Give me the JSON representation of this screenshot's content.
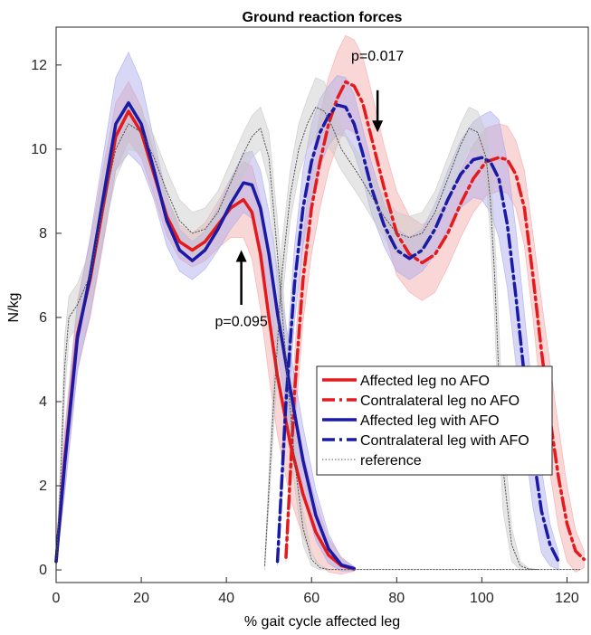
{
  "chart_data": {
    "type": "line",
    "title": "Ground reaction forces",
    "xlabel": "% gait cycle affected leg",
    "ylabel": "N/kg",
    "xlim": [
      0,
      125
    ],
    "ylim": [
      -0.3,
      12.9
    ],
    "xticks": [
      0,
      20,
      40,
      60,
      80,
      100,
      120
    ],
    "yticks": [
      0,
      2,
      4,
      6,
      8,
      10,
      12
    ],
    "grid": false,
    "legend_position": "lower-right",
    "annotations": [
      {
        "text": "p=0.017",
        "x": 75.5,
        "y": 12.1,
        "arrow_from": [
          75.5,
          11.4
        ],
        "arrow_to": [
          75.5,
          10.4
        ]
      },
      {
        "text": "p=0.095",
        "x": 43.5,
        "y": 5.8,
        "arrow_from": [
          43.5,
          6.3
        ],
        "arrow_to": [
          43.5,
          7.6
        ]
      }
    ],
    "series": [
      {
        "name": "Affected leg no AFO",
        "color": "#e41a1c",
        "dash": "solid",
        "band_color": "#f4a7a7",
        "x": [
          0,
          2,
          5,
          8,
          11,
          14,
          17,
          20,
          23,
          26,
          29,
          32,
          35,
          38,
          41,
          44,
          46,
          48,
          50,
          52,
          55,
          58,
          61,
          64,
          67,
          70
        ],
        "y": [
          0.2,
          2.6,
          5.6,
          6.9,
          8.6,
          10.3,
          10.9,
          10.4,
          9.4,
          8.4,
          7.8,
          7.6,
          7.8,
          8.2,
          8.6,
          8.8,
          8.5,
          7.5,
          6.0,
          4.6,
          3.0,
          1.8,
          0.9,
          0.35,
          0.1,
          0.02
        ],
        "band": [
          0.1,
          0.7,
          0.8,
          0.9,
          0.9,
          0.8,
          0.7,
          0.6,
          0.5,
          0.45,
          0.4,
          0.4,
          0.45,
          0.55,
          0.7,
          0.9,
          1.1,
          1.3,
          1.4,
          1.4,
          1.3,
          1.0,
          0.7,
          0.4,
          0.2,
          0.05
        ]
      },
      {
        "name": "Contralateral leg no AFO",
        "color": "#e41a1c",
        "dash": "dashdot",
        "band_color": "#f4a7a7",
        "x": [
          54,
          56,
          58,
          60,
          62,
          64,
          66,
          68,
          70,
          72,
          74,
          77,
          80,
          83,
          86,
          89,
          92,
          95,
          98,
          101,
          104,
          106,
          108,
          110,
          112,
          114,
          116,
          118,
          120,
          122,
          124
        ],
        "y": [
          0.3,
          4.2,
          6.9,
          8.6,
          9.7,
          10.6,
          11.2,
          11.6,
          11.5,
          11.1,
          10.3,
          9.1,
          8.0,
          7.5,
          7.3,
          7.5,
          8.0,
          8.7,
          9.3,
          9.7,
          9.8,
          9.75,
          9.4,
          8.6,
          7.0,
          5.2,
          3.6,
          2.2,
          1.1,
          0.45,
          0.25
        ],
        "band": [
          0.1,
          0.9,
          1.0,
          1.1,
          1.1,
          1.1,
          1.1,
          1.1,
          1.1,
          1.1,
          1.1,
          1.0,
          1.0,
          0.9,
          0.9,
          0.9,
          0.8,
          0.8,
          0.8,
          0.8,
          0.8,
          0.8,
          0.8,
          0.9,
          1.0,
          1.2,
          1.3,
          1.2,
          0.9,
          0.5,
          0.2
        ]
      },
      {
        "name": "Affected leg with AFO",
        "color": "#1a1aa6",
        "dash": "solid",
        "band_color": "#a9a9ec",
        "x": [
          0,
          2,
          5,
          8,
          11,
          14,
          17,
          20,
          23,
          26,
          29,
          32,
          35,
          38,
          41,
          44,
          46,
          48,
          50,
          52,
          55,
          58,
          61,
          64,
          67,
          70
        ],
        "y": [
          0.2,
          2.5,
          5.5,
          7.0,
          8.8,
          10.6,
          11.1,
          10.6,
          9.5,
          8.3,
          7.6,
          7.35,
          7.6,
          8.1,
          8.7,
          9.2,
          9.15,
          8.6,
          7.5,
          6.1,
          4.3,
          2.6,
          1.3,
          0.5,
          0.12,
          0.03
        ],
        "band": [
          0.1,
          0.7,
          0.8,
          0.9,
          1.0,
          1.1,
          1.2,
          1.0,
          0.7,
          0.6,
          0.5,
          0.45,
          0.45,
          0.5,
          0.6,
          0.7,
          0.8,
          0.9,
          1.0,
          1.0,
          0.9,
          0.8,
          0.6,
          0.35,
          0.15,
          0.05
        ]
      },
      {
        "name": "Contralateral leg with AFO",
        "color": "#1a1aa6",
        "dash": "dashdot",
        "band_color": "#a9a9ec",
        "x": [
          52,
          54,
          56,
          58,
          60,
          62,
          64,
          66,
          68,
          70,
          72,
          74,
          77,
          80,
          83,
          86,
          89,
          92,
          95,
          98,
          100,
          102,
          104,
          106,
          108,
          110,
          112,
          114,
          116,
          118
        ],
        "y": [
          0.2,
          4.0,
          6.8,
          8.6,
          9.7,
          10.4,
          10.8,
          11.05,
          11.0,
          10.6,
          9.9,
          9.1,
          8.2,
          7.6,
          7.4,
          7.6,
          8.1,
          8.8,
          9.4,
          9.75,
          9.8,
          9.7,
          9.3,
          8.2,
          6.5,
          4.6,
          2.8,
          1.4,
          0.6,
          0.2
        ],
        "band": [
          0.1,
          0.8,
          0.9,
          0.9,
          0.9,
          0.8,
          0.7,
          0.7,
          0.7,
          0.7,
          0.6,
          0.6,
          0.5,
          0.5,
          0.5,
          0.5,
          0.6,
          0.7,
          0.8,
          0.9,
          1.0,
          1.2,
          1.4,
          1.5,
          1.6,
          1.5,
          1.3,
          1.0,
          0.5,
          0.2
        ]
      },
      {
        "name": "reference",
        "color": "#555555",
        "dash": "dotted",
        "band_color": "#c8c8c8",
        "x": [
          0,
          1,
          2,
          3,
          5,
          8,
          11,
          14,
          17,
          20,
          23,
          26,
          29,
          32,
          35,
          38,
          41,
          44,
          46,
          48,
          50,
          52,
          54,
          56,
          58,
          60,
          62,
          64,
          66,
          68,
          70,
          72,
          74,
          77,
          80,
          83,
          86,
          89,
          92,
          95,
          97,
          99,
          101,
          103,
          105,
          107,
          109,
          111,
          113,
          115,
          117,
          119,
          121,
          123
        ],
        "y": [
          0.1,
          2.0,
          4.8,
          6.0,
          6.3,
          7.0,
          8.6,
          10.0,
          10.6,
          10.4,
          9.8,
          9.0,
          8.3,
          8.0,
          8.1,
          8.5,
          9.2,
          9.9,
          10.3,
          10.5,
          9.8,
          7.5,
          5.0,
          2.6,
          1.0,
          0.25,
          0.05,
          0.01,
          0.01,
          0.01,
          0.01,
          0.01,
          0.01,
          0.01,
          0.01,
          0.01,
          0.01,
          0.01,
          0.01,
          0.01,
          0.01,
          0.01,
          0.01,
          0.01,
          0.01,
          0.01,
          0.01,
          0.01,
          0.01,
          0.01,
          0.01,
          0.01,
          0.01,
          0.01
        ],
        "band": [
          0.1,
          0.4,
          0.7,
          0.5,
          0.5,
          0.6,
          0.7,
          0.7,
          0.6,
          0.5,
          0.5,
          0.5,
          0.5,
          0.5,
          0.5,
          0.5,
          0.5,
          0.5,
          0.5,
          0.5,
          0.6,
          0.8,
          0.8,
          0.6,
          0.4,
          0.15,
          0.05,
          0.0,
          0.0,
          0.0,
          0.0,
          0.0,
          0.0,
          0.0,
          0.0,
          0.0,
          0.0,
          0.0,
          0.0,
          0.0,
          0.0,
          0.0,
          0.0,
          0.0,
          0.0,
          0.0,
          0.0,
          0.0,
          0.0,
          0.0,
          0.0,
          0.0,
          0.0,
          0.0
        ]
      },
      {
        "name": "reference",
        "color": "#555555",
        "dash": "dotted",
        "band_color": "#c8c8c8",
        "legend": false,
        "x": [
          49,
          51,
          53,
          55,
          57,
          59,
          61,
          63,
          65,
          67,
          69,
          71,
          74,
          77,
          80,
          83,
          86,
          89,
          92,
          95,
          97,
          99,
          101,
          102,
          103,
          104,
          105,
          107,
          109,
          111,
          113
        ],
        "y": [
          0.1,
          3.8,
          7.0,
          8.9,
          10.0,
          10.6,
          11.0,
          10.9,
          10.5,
          10.0,
          9.7,
          9.4,
          8.9,
          8.4,
          8.0,
          7.9,
          8.0,
          8.5,
          9.3,
          10.1,
          10.5,
          10.4,
          9.8,
          8.8,
          7.0,
          4.6,
          2.4,
          0.6,
          0.1,
          0.02,
          0.01
        ],
        "band": [
          0.1,
          0.6,
          0.7,
          0.6,
          0.6,
          0.6,
          0.7,
          0.7,
          0.6,
          0.5,
          0.5,
          0.5,
          0.5,
          0.5,
          0.5,
          0.5,
          0.5,
          0.5,
          0.5,
          0.5,
          0.5,
          0.5,
          0.6,
          0.8,
          1.0,
          1.2,
          1.0,
          0.4,
          0.1,
          0.02,
          0.0
        ]
      }
    ]
  }
}
